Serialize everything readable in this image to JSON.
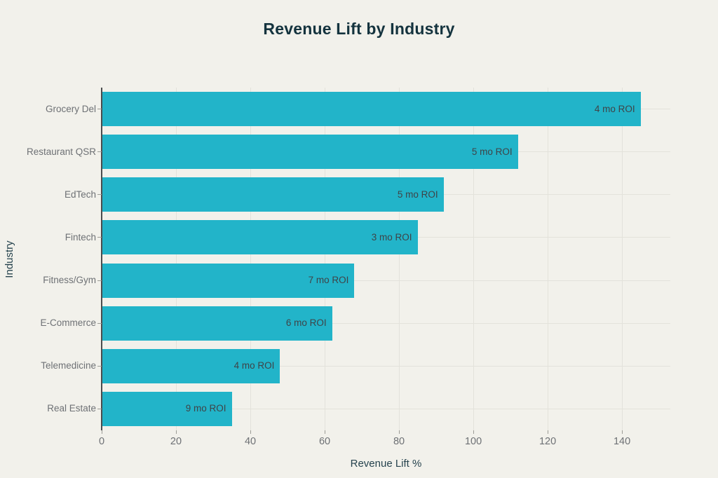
{
  "page": {
    "background": "#f2f1eb"
  },
  "colors": {
    "background": "#f2f1eb",
    "bar": "#22b4c9",
    "title_text": "#14333e",
    "axis_title_text": "#26434e",
    "tick_text": "#6e7175",
    "bar_label_text": "#3f4347",
    "gridline": "#e3e2db",
    "axis_line": "#4a4c4d",
    "tick_mark": "#9c9c96"
  },
  "chart_data": {
    "type": "bar",
    "orientation": "horizontal",
    "title": "Revenue Lift by Industry",
    "xlabel": "Revenue Lift %",
    "ylabel": "Industry",
    "categories": [
      "Grocery Del",
      "Restaurant QSR",
      "EdTech",
      "Fintech",
      "Fitness/Gym",
      "E-Commerce",
      "Telemedicine",
      "Real Estate"
    ],
    "values": [
      145,
      112,
      92,
      85,
      68,
      62,
      48,
      35
    ],
    "bar_labels": [
      "4 mo ROI",
      "5 mo ROI",
      "5 mo ROI",
      "3 mo ROI",
      "7 mo ROI",
      "6 mo ROI",
      "4 mo ROI",
      "9 mo ROI"
    ],
    "bar_label_position": "inside-end",
    "x_ticks": [
      0,
      20,
      40,
      60,
      80,
      100,
      120,
      140
    ],
    "xlim": [
      0,
      153
    ],
    "grid": true,
    "legend_position": "none",
    "bar_color": "#22b4c9"
  }
}
